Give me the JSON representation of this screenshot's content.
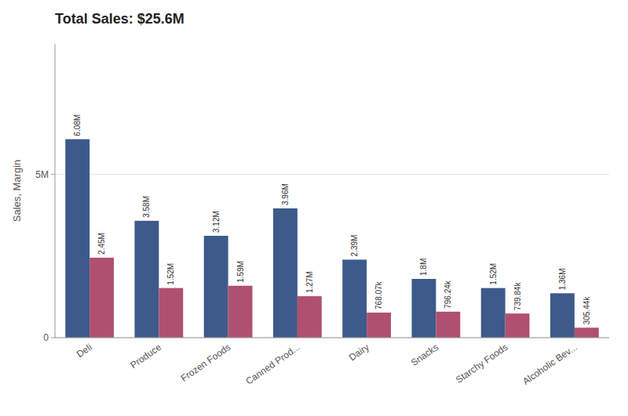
{
  "chart_data": {
    "type": "bar",
    "title": "Total Sales: $25.6M",
    "y_label": "Sales, Margin",
    "categories": [
      "Deli",
      "Produce",
      "Frozen Foods",
      "Canned Prod...",
      "Dairy",
      "Snacks",
      "Starchy Foods",
      "Alcoholic Bev..."
    ],
    "series": [
      {
        "color": "#3d5a8a",
        "values": [
          6.08,
          3.58,
          3.12,
          3.96,
          2.39,
          1.8,
          1.52,
          1.36
        ],
        "value_labels": [
          "6.08M",
          "3.58M",
          "3.12M",
          "3.96M",
          "2.39M",
          "1.8M",
          "1.52M",
          "1.36M"
        ]
      },
      {
        "color": "#b05070",
        "values": [
          2.45,
          1.52,
          1.59,
          1.27,
          0.76807,
          0.79624,
          0.73984,
          0.30544
        ],
        "value_labels": [
          "2.45M",
          "1.52M",
          "1.59M",
          "1.27M",
          "768.07k",
          "796.24k",
          "739.84k",
          "305.44k"
        ]
      }
    ],
    "ylim": [
      0,
      9.0
    ],
    "yticks": [
      0,
      {
        "value": 5,
        "label": "5M"
      }
    ],
    "grid": true,
    "data_labels": true
  }
}
